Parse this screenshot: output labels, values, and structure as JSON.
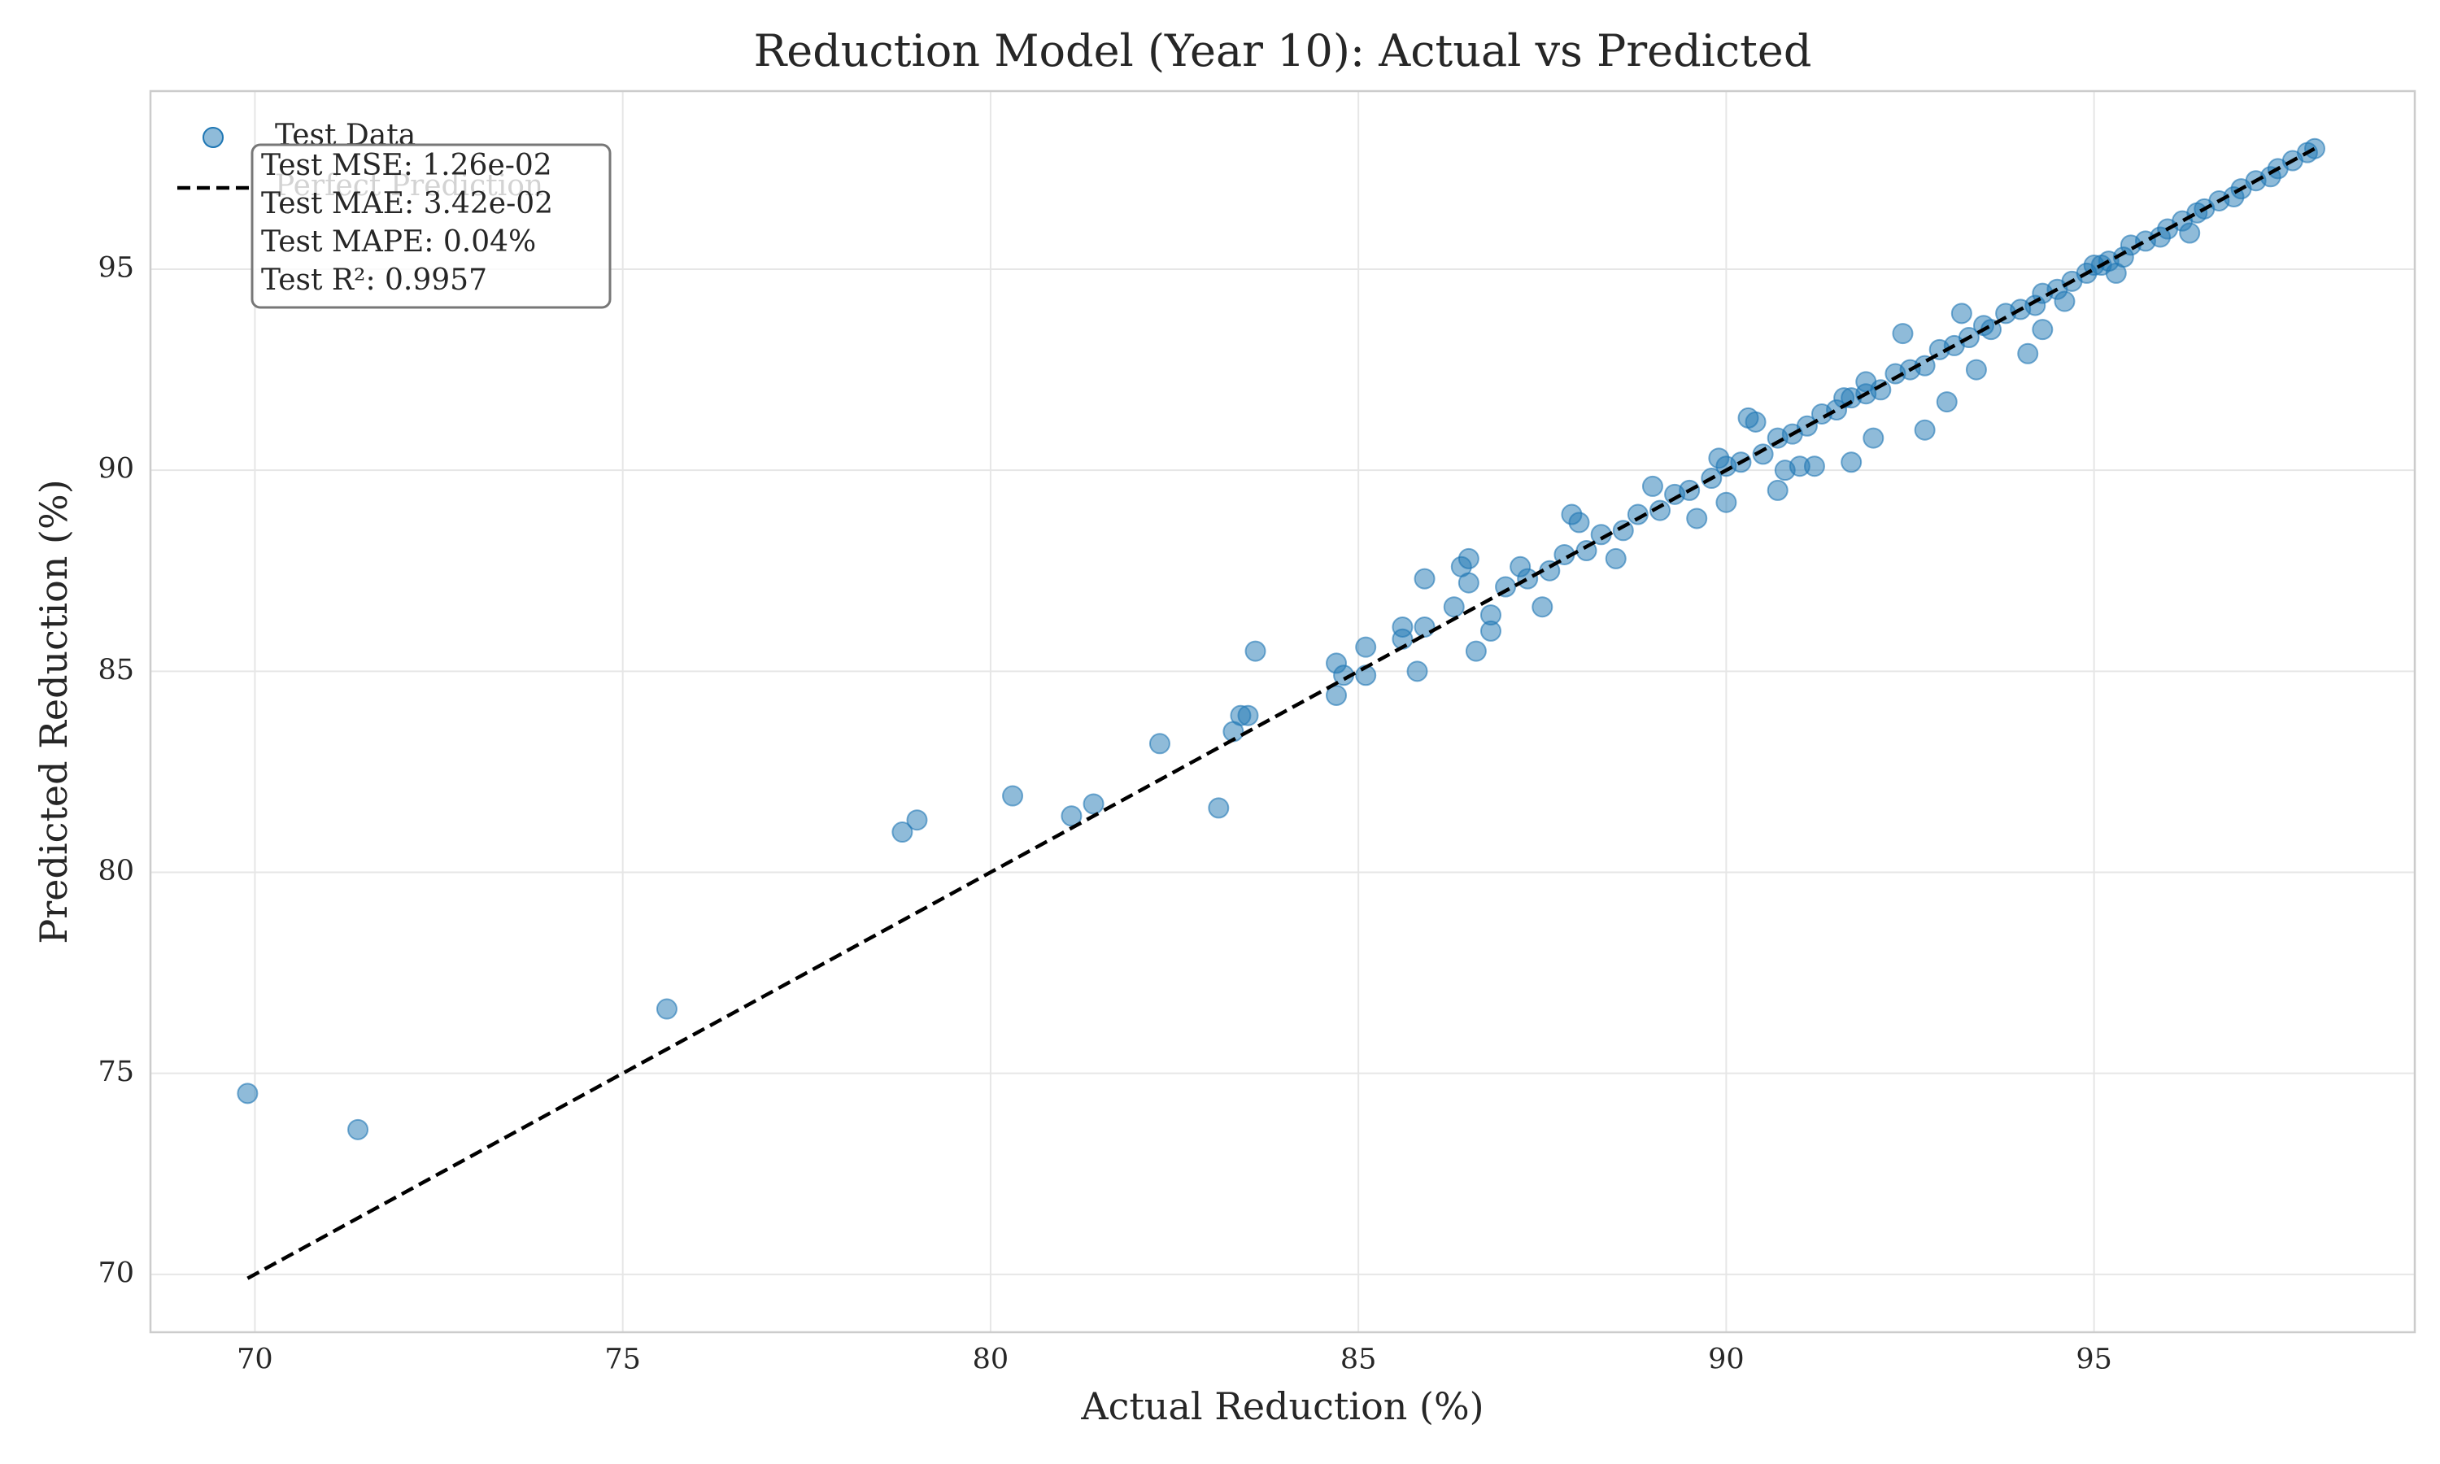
{
  "chart_data": {
    "type": "scatter",
    "title": "Reduction Model (Year 10): Actual vs Predicted",
    "x_label": "Actual Reduction (%)",
    "y_label": "Predicted Reduction (%)",
    "xlim": [
      68.58,
      99.36
    ],
    "ylim": [
      68.56,
      99.43
    ],
    "xticks": [
      70,
      75,
      80,
      85,
      90,
      95
    ],
    "yticks": [
      70,
      75,
      80,
      85,
      90,
      95
    ],
    "grid": true,
    "legend": "upper left",
    "annotation": [
      "Test MSE: 1.26e-02",
      "Test MAE: 3.42e-02",
      "Test MAPE: 0.04%",
      "Test R²: 0.9957"
    ],
    "series": [
      {
        "name": "Test Data",
        "color": "#1f77b4",
        "x": [
          69.9,
          71.4,
          75.6,
          78.8,
          79.0,
          80.3,
          81.1,
          81.4,
          82.3,
          83.1,
          83.3,
          83.4,
          83.5,
          83.6,
          84.7,
          84.7,
          84.8,
          85.1,
          85.1,
          85.6,
          85.6,
          85.8,
          85.9,
          85.9,
          86.3,
          86.4,
          86.5,
          86.5,
          86.6,
          86.8,
          86.8,
          87.5,
          87.2,
          87.9,
          88.0,
          88.5,
          89.0,
          89.6,
          90.0,
          90.7,
          90.4,
          91.0,
          91.6,
          87.0,
          87.3,
          87.6,
          87.8,
          88.1,
          88.3,
          88.6,
          88.8,
          89.1,
          89.3,
          89.5,
          89.8,
          90.0,
          90.2,
          90.5,
          90.7,
          90.9,
          91.1,
          91.3,
          91.5,
          91.7,
          91.9,
          92.1,
          92.3,
          92.5,
          92.7,
          92.9,
          93.1,
          93.3,
          93.5,
          93.6,
          93.8,
          94.0,
          94.2,
          94.3,
          94.5,
          94.7,
          94.9,
          95.0,
          95.2,
          95.4,
          95.5,
          95.7,
          95.9,
          96.0,
          96.2,
          96.4,
          96.5,
          96.7,
          96.9,
          97.0,
          97.2,
          97.4,
          97.5,
          97.7,
          97.9,
          98.0,
          90.8,
          91.2,
          91.7,
          92.0,
          92.7,
          93.0,
          93.4,
          94.1,
          94.3,
          95.1,
          95.3,
          96.3,
          92.4,
          91.9,
          90.3,
          89.9,
          93.2,
          94.6
        ],
        "values": [
          74.5,
          73.6,
          76.6,
          81.0,
          81.3,
          81.9,
          81.4,
          81.7,
          83.2,
          81.6,
          83.5,
          83.9,
          83.9,
          85.5,
          84.4,
          85.2,
          84.9,
          84.9,
          85.6,
          86.1,
          85.8,
          85.0,
          87.3,
          86.1,
          86.6,
          87.6,
          87.8,
          87.2,
          85.5,
          86.0,
          86.4,
          86.6,
          87.6,
          88.9,
          88.7,
          87.8,
          89.6,
          88.8,
          89.2,
          89.5,
          91.2,
          90.1,
          91.8,
          87.1,
          87.3,
          87.5,
          87.9,
          88.0,
          88.4,
          88.5,
          88.9,
          89.0,
          89.4,
          89.5,
          89.8,
          90.1,
          90.2,
          90.4,
          90.8,
          90.9,
          91.1,
          91.4,
          91.5,
          91.8,
          91.9,
          92.0,
          92.4,
          92.5,
          92.6,
          93.0,
          93.1,
          93.3,
          93.6,
          93.5,
          93.9,
          94.0,
          94.1,
          94.4,
          94.5,
          94.7,
          94.9,
          95.1,
          95.2,
          95.3,
          95.6,
          95.7,
          95.8,
          96.0,
          96.2,
          96.4,
          96.5,
          96.7,
          96.8,
          97.0,
          97.2,
          97.3,
          97.5,
          97.7,
          97.9,
          98.0,
          90.0,
          90.1,
          90.2,
          90.8,
          91.0,
          91.7,
          92.5,
          92.9,
          93.5,
          95.1,
          94.9,
          95.9,
          93.4,
          92.2,
          91.3,
          90.3,
          93.9,
          94.2
        ]
      },
      {
        "name": "Perfect Prediction",
        "type": "line",
        "color": "#000000",
        "x": [
          69.9,
          98.0
        ],
        "values": [
          69.9,
          98.0
        ]
      }
    ]
  }
}
